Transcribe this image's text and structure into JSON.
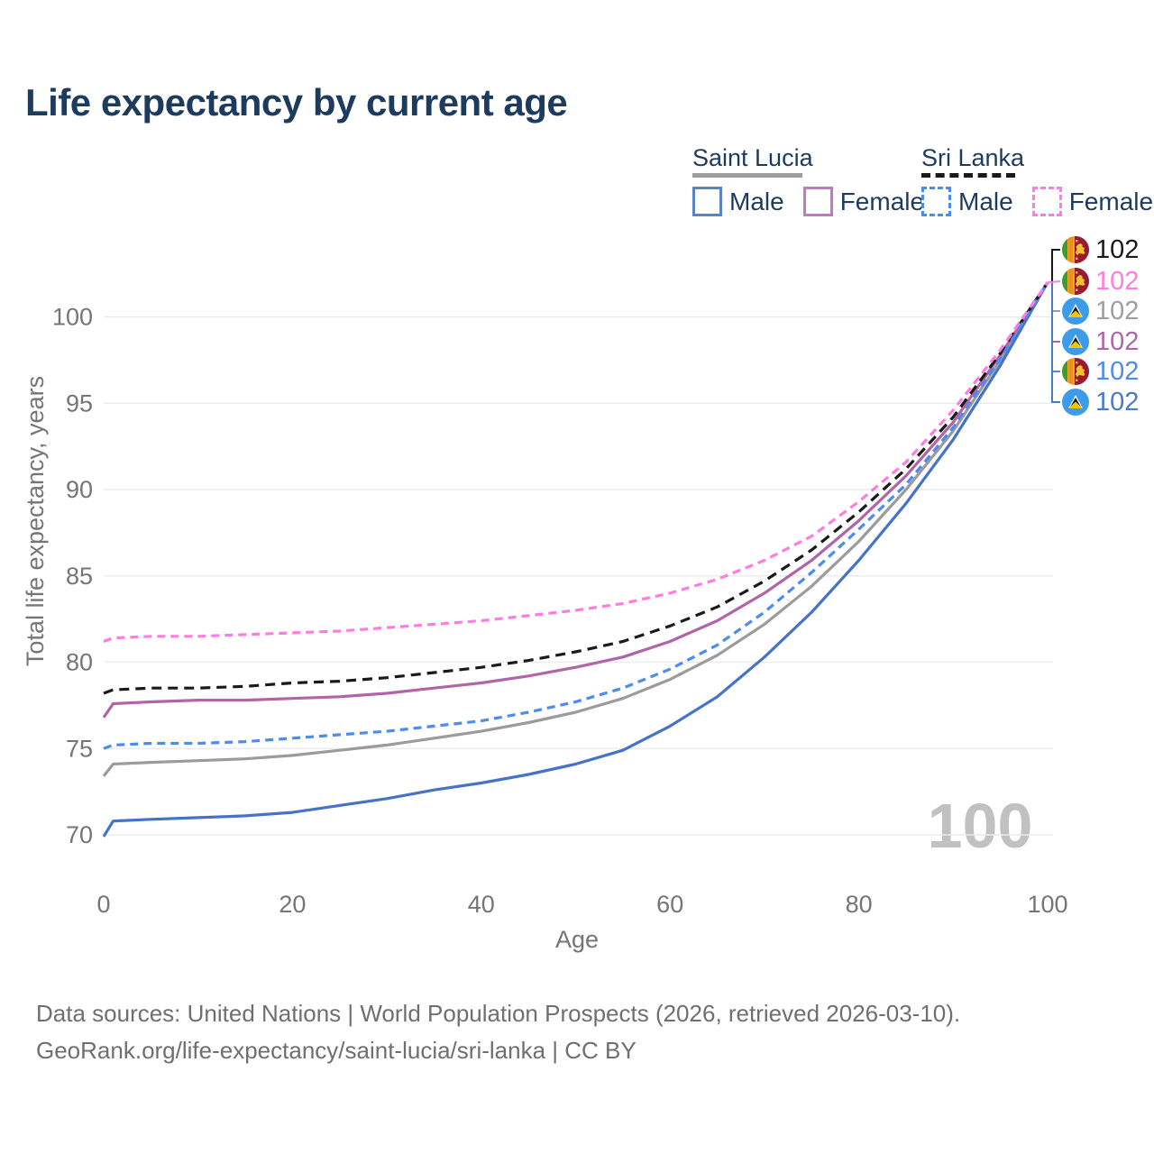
{
  "title": "Life expectancy by current age",
  "legend": {
    "groups": [
      {
        "label": "Saint Lucia",
        "line_color": "#9e9e9e",
        "line_dash": false,
        "items": [
          {
            "label": "Male",
            "color": "#5b82c9",
            "dash": false
          },
          {
            "label": "Female",
            "color": "#c478bd",
            "dash": false
          }
        ]
      },
      {
        "label": "Sri Lanka",
        "line_color": "#1a1a1a",
        "line_dash": true,
        "items": [
          {
            "label": "Male",
            "color": "#4b8cf0",
            "dash": true
          },
          {
            "label": "Female",
            "color": "#ff7ce0",
            "dash": true
          }
        ]
      }
    ]
  },
  "chart_data": {
    "type": "line",
    "title": "Life expectancy by current age",
    "xlabel": "Age",
    "ylabel": "Total life expectancy, years",
    "xticks": [
      0,
      20,
      40,
      60,
      80,
      100
    ],
    "yticks": [
      70,
      75,
      80,
      85,
      90,
      95,
      100
    ],
    "xlim": [
      0,
      100
    ],
    "ylim": [
      68,
      103
    ],
    "grid": true,
    "legend_position": "top-right",
    "watermark": "100",
    "x": [
      0,
      1,
      5,
      10,
      15,
      20,
      25,
      30,
      35,
      40,
      45,
      50,
      55,
      60,
      65,
      70,
      75,
      80,
      85,
      90,
      95,
      100
    ],
    "series": [
      {
        "name": "Saint Lucia",
        "country": "Saint Lucia",
        "group": "All",
        "color": "#9b9b9b",
        "dash": false,
        "values": [
          73.4,
          74.1,
          74.2,
          74.3,
          74.4,
          74.6,
          74.9,
          75.2,
          75.6,
          76.0,
          76.5,
          77.1,
          77.9,
          79.0,
          80.4,
          82.2,
          84.4,
          87.0,
          90.0,
          93.4,
          97.5,
          102
        ]
      },
      {
        "name": "Saint Lucia Male",
        "country": "Saint Lucia",
        "group": "Male",
        "color": "#4673c8",
        "dash": false,
        "values": [
          69.9,
          70.8,
          70.9,
          71.0,
          71.1,
          71.3,
          71.7,
          72.1,
          72.6,
          73.0,
          73.5,
          74.1,
          74.9,
          76.3,
          78.0,
          80.3,
          82.9,
          85.9,
          89.2,
          92.9,
          97.2,
          102
        ]
      },
      {
        "name": "Saint Lucia Female",
        "country": "Saint Lucia",
        "group": "Female",
        "color": "#b165a8",
        "dash": false,
        "values": [
          76.8,
          77.6,
          77.7,
          77.8,
          77.8,
          77.9,
          78.0,
          78.2,
          78.5,
          78.8,
          79.2,
          79.7,
          80.3,
          81.2,
          82.4,
          84.0,
          85.9,
          88.2,
          90.8,
          93.9,
          97.8,
          102
        ]
      },
      {
        "name": "Sri Lanka",
        "country": "Sri Lanka",
        "group": "All",
        "color": "#1a1a1a",
        "dash": true,
        "values": [
          78.2,
          78.4,
          78.5,
          78.5,
          78.6,
          78.8,
          78.9,
          79.1,
          79.4,
          79.7,
          80.1,
          80.6,
          81.2,
          82.1,
          83.2,
          84.7,
          86.5,
          88.7,
          91.2,
          94.2,
          97.9,
          102
        ]
      },
      {
        "name": "Sri Lanka Male",
        "country": "Sri Lanka",
        "group": "Male",
        "color": "#4b8cf0",
        "dash": true,
        "values": [
          75.0,
          75.2,
          75.3,
          75.3,
          75.4,
          75.6,
          75.8,
          76.0,
          76.3,
          76.6,
          77.1,
          77.7,
          78.5,
          79.6,
          81.0,
          82.9,
          85.2,
          87.7,
          90.3,
          93.6,
          97.6,
          102
        ]
      },
      {
        "name": "Sri Lanka Female",
        "country": "Sri Lanka",
        "group": "Female",
        "color": "#ff7ce0",
        "dash": true,
        "values": [
          81.2,
          81.4,
          81.5,
          81.5,
          81.6,
          81.7,
          81.8,
          82.0,
          82.2,
          82.4,
          82.7,
          83.0,
          83.4,
          84.0,
          84.8,
          85.9,
          87.3,
          89.3,
          91.6,
          94.6,
          98.1,
          102
        ]
      }
    ]
  },
  "end_labels": [
    {
      "flag": "sri-lanka",
      "series": "Sri Lanka",
      "value": "102",
      "color": "#1a1a1a"
    },
    {
      "flag": "sri-lanka",
      "series": "Sri Lanka Female",
      "value": "102",
      "color": "#ff7ce0"
    },
    {
      "flag": "saint-lucia",
      "series": "Saint Lucia",
      "value": "102",
      "color": "#9e9e9e"
    },
    {
      "flag": "saint-lucia",
      "series": "Saint Lucia Female",
      "value": "102",
      "color": "#b165a8"
    },
    {
      "flag": "sri-lanka",
      "series": "Sri Lanka Male",
      "value": "102",
      "color": "#4b8cf0"
    },
    {
      "flag": "saint-lucia",
      "series": "Saint Lucia Male",
      "value": "102",
      "color": "#4a79ca"
    }
  ],
  "footer": {
    "line1": "Data sources: United Nations | World Population Prospects (2026, retrieved 2026-03-10).",
    "line2": "GeoRank.org/life-expectancy/saint-lucia/sri-lanka | CC BY"
  }
}
